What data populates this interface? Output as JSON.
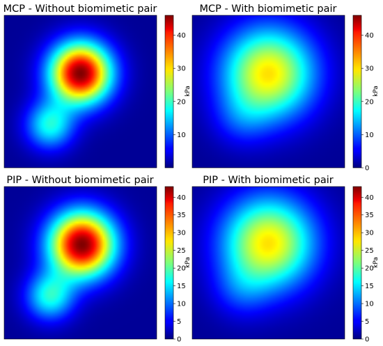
{
  "figure": {
    "colormap": "jet",
    "colorbar_unit_label": "kPa"
  },
  "chart_data": [
    {
      "type": "heatmap",
      "title": "MCP - Without biomimetic pair",
      "colorbar": {
        "vmin": 0,
        "vmax": 46,
        "ticks": [
          10,
          20,
          30,
          40
        ],
        "label": "kPa"
      },
      "blobs": [
        {
          "cx": 0.5,
          "cy": 0.38,
          "sigma": 0.14,
          "peak": 46
        },
        {
          "cx": 0.3,
          "cy": 0.72,
          "sigma": 0.11,
          "peak": 18
        }
      ],
      "background": 1
    },
    {
      "type": "heatmap",
      "title": "MCP - With biomimetic pair",
      "colorbar": {
        "vmin": 0,
        "vmax": 46,
        "ticks": [
          0,
          10,
          20,
          30,
          40
        ],
        "label": "kPa"
      },
      "blobs": [
        {
          "cx": 0.5,
          "cy": 0.38,
          "sigma": 0.21,
          "peak": 30
        },
        {
          "cx": 0.32,
          "cy": 0.68,
          "sigma": 0.13,
          "peak": 6
        }
      ],
      "background": 1
    },
    {
      "type": "heatmap",
      "title": "PIP - Without biomimetic pair",
      "colorbar": {
        "vmin": 0,
        "vmax": 43,
        "ticks": [
          0,
          5,
          10,
          15,
          20,
          25,
          30,
          35,
          40
        ],
        "label": "kPa"
      },
      "blobs": [
        {
          "cx": 0.51,
          "cy": 0.38,
          "sigma": 0.15,
          "peak": 43
        },
        {
          "cx": 0.3,
          "cy": 0.72,
          "sigma": 0.11,
          "peak": 17
        }
      ],
      "background": 1
    },
    {
      "type": "heatmap",
      "title": "PIP - With biomimetic pair",
      "colorbar": {
        "vmin": 0,
        "vmax": 43,
        "ticks": [
          0,
          5,
          10,
          15,
          20,
          25,
          30,
          35,
          40
        ],
        "label": "kPa"
      },
      "blobs": [
        {
          "cx": 0.5,
          "cy": 0.37,
          "sigma": 0.21,
          "peak": 28
        },
        {
          "cx": 0.32,
          "cy": 0.68,
          "sigma": 0.13,
          "peak": 6
        }
      ],
      "background": 1
    }
  ]
}
